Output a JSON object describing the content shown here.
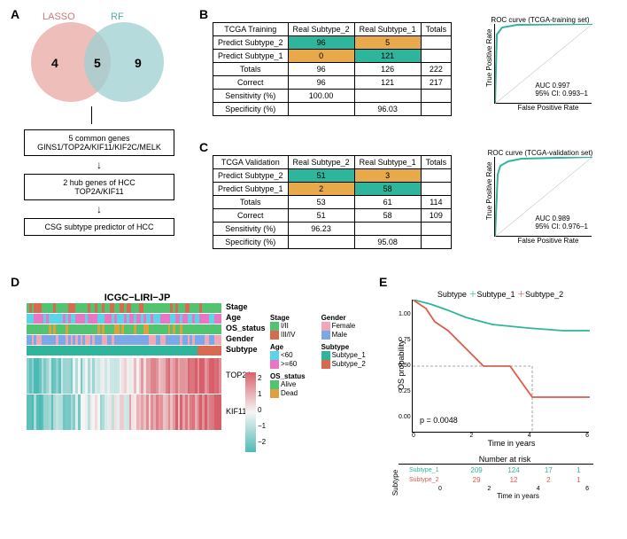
{
  "panelA": {
    "label": "A",
    "venn": {
      "left_label": "LASSO",
      "right_label": "RF",
      "left_color": "#e8a8a3",
      "right_color": "#9ecfd1",
      "left_only": 4,
      "intersection": 5,
      "right_only": 9
    },
    "flow": {
      "box1_line1": "5 common genes",
      "box1_line2": "GINS1/TOP2A/KIF11/KIF2C/MELK",
      "box2_line1": "2 hub genes of HCC",
      "box2_line2": "TOP2A/KIF11",
      "box3": "CSG subtype predictor of HCC"
    }
  },
  "panelB": {
    "label": "B",
    "table": {
      "title": "TCGA Training",
      "col1": "Real Subtype_2",
      "col2": "Real Subtype_1",
      "col3": "Totals",
      "row1_label": "Predict Subtype_2",
      "row1": [
        "96",
        "5",
        ""
      ],
      "row2_label": "Predict Subtype_1",
      "row2": [
        "0",
        "121",
        ""
      ],
      "row3_label": "Totals",
      "row3": [
        "96",
        "126",
        "222"
      ],
      "row4_label": "Correct",
      "row4": [
        "96",
        "121",
        "217"
      ],
      "row5_label": "Sensitivity (%)",
      "row5": [
        "100.00",
        "",
        ""
      ],
      "row6_label": "Specificity (%)",
      "row6": [
        "",
        "96.03",
        ""
      ]
    },
    "roc": {
      "title": "ROC curve (TCGA-training set)",
      "xlabel": "False Positive Rate",
      "ylabel": "True Positive Rate",
      "auc": "AUC 0.997",
      "ci": "95% CI: 0.993–1",
      "line_color": "#2fb59b",
      "ticks": [
        "0.0",
        "0.2",
        "0.4",
        "0.6",
        "0.8",
        "1.0"
      ]
    }
  },
  "panelC": {
    "label": "C",
    "table": {
      "title": "TCGA Validation",
      "col1": "Real Subtype_2",
      "col2": "Real Subtype_1",
      "col3": "Totals",
      "row1_label": "Predict Subtype_2",
      "row1": [
        "51",
        "3",
        ""
      ],
      "row2_label": "Predict Subtype_1",
      "row2": [
        "2",
        "58",
        ""
      ],
      "row3_label": "Totals",
      "row3": [
        "53",
        "61",
        "114"
      ],
      "row4_label": "Correct",
      "row4": [
        "51",
        "58",
        "109"
      ],
      "row5_label": "Sensitivity (%)",
      "row5": [
        "96.23",
        "",
        ""
      ],
      "row6_label": "Specificity (%)",
      "row6": [
        "",
        "95.08",
        ""
      ]
    },
    "roc": {
      "title": "ROC curve (TCGA-validation set)",
      "xlabel": "False Positive Rate",
      "ylabel": "True Positive Rate",
      "auc": "AUC 0.989",
      "ci": "95% CI: 0.976–1",
      "line_color": "#2fb59b",
      "ticks": [
        "0.0",
        "0.2",
        "0.4",
        "0.6",
        "0.8",
        "1.0"
      ]
    }
  },
  "panelD": {
    "label": "D",
    "title": "ICGC−LIRI−JP",
    "tracks": [
      "Stage",
      "Age",
      "OS_status",
      "Gender",
      "Subtype"
    ],
    "genes": [
      "TOP2A",
      "KIF11"
    ],
    "colorbar_ticks": [
      "2",
      "1",
      "0",
      "−1",
      "−2"
    ],
    "legends": {
      "Stage": {
        "I/II": "#52c471",
        "III/IV": "#d86b4f"
      },
      "Age": {
        "<60": "#5cd4e8",
        ">=60": "#e876c4"
      },
      "OS_status": {
        "Alive": "#52c471",
        "Dead": "#e0a03e"
      },
      "Gender": {
        "Female": "#f0a8b8",
        "Male": "#7aa8e8"
      },
      "Subtype": {
        "Subtype_1": "#2fb59b",
        "Subtype_2": "#d86b4f"
      }
    }
  },
  "panelE": {
    "label": "E",
    "legend_label": "Subtype",
    "subtype1_label": "Subtype_1",
    "subtype2_label": "Subtype_2",
    "subtype1_color": "#2fb59b",
    "subtype2_color": "#e05a4a",
    "ylabel": "OS probability",
    "xlabel": "Time in years",
    "pvalue": "p = 0.0048",
    "xticks": [
      "0",
      "2",
      "4",
      "6"
    ],
    "yticks": [
      "0.00",
      "0.25",
      "0.50",
      "0.75",
      "1.00"
    ],
    "risk_title": "Number at risk",
    "risk_xlabel": "Time in years",
    "risk_ylabel": "Subtype",
    "risk": {
      "Subtype_1": [
        "209",
        "124",
        "17",
        "1"
      ],
      "Subtype_2": [
        "29",
        "12",
        "2",
        "1"
      ]
    }
  }
}
